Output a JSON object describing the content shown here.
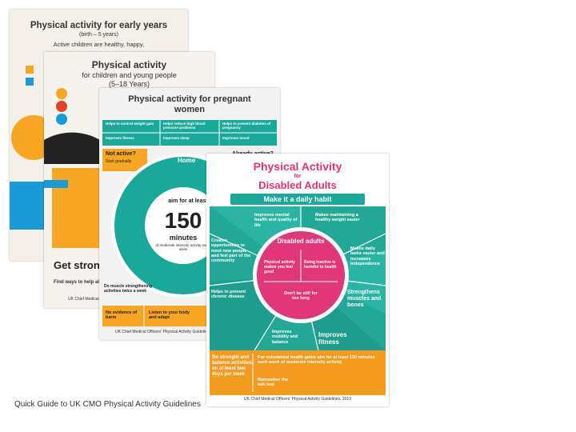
{
  "caption": "Quick Guide to UK CMO Physical Activity Guidelines",
  "posters": [
    {
      "title": "Physical activity for early years",
      "subtitle": "(birth – 5 years)",
      "intro": "Active children are healthy, happy,"
    },
    {
      "title": "Physical activity",
      "subtitle": "for children and young people",
      "ages": "(5–18 Years)",
      "heading": "Get strong",
      "tip": "Find ways to help all children",
      "footer": "UK Chief Medical Officers' Physical Activity Guidelines"
    },
    {
      "title": "Physical activity for pregnant women",
      "benefits": [
        "Helps to control weight gain",
        "Helps reduce high blood pressure problems",
        "Helps to prevent diabetes of pregnancy",
        "Improves fitness",
        "Improves sleep",
        "Improves mood"
      ],
      "not_active": "Not active?",
      "not_active_tip": "Start gradually",
      "already_active": "Already active?",
      "home": "Home",
      "aim": "aim for at least",
      "minutes_value": "150",
      "minutes": "minutes",
      "intensity": "of moderate intensity activity every week",
      "muscle": "Do muscle strengthening activities twice a week",
      "no_harm": "No evidence of harm",
      "listen": "Listen to your body and adapt",
      "footer": "UK Chief Medical Officers' Physical Activity Guidelines"
    },
    {
      "title": "Physical Activity",
      "for": "for",
      "title2": "Disabled Adults",
      "banner": "Make it a daily habit",
      "segments": [
        "Improves mental health and quality of life",
        "Makes maintaining a healthy weight easier",
        "Creates opportunities to meet new people and feel part of the community",
        "Makes daily tasks easier and increases independence",
        "Helps to prevent chronic disease",
        "Strengthens muscles and bones",
        "Improves mobility and balance",
        "Improves fitness"
      ],
      "centre_title": "Disabled adults",
      "centre": [
        "Physical activity makes you feel good",
        "Being inactive is harmful to health",
        "Don't be still for too long"
      ],
      "strength": "Do strength and balance activities on at least two days per week",
      "gains": "For substantial health gains aim for at least 150 minutes each week of moderate intensity activity",
      "talk": "Remember the talk test",
      "footer": "UK Chief Medical Officers' Physical Activity Guidelines, 2019"
    }
  ]
}
